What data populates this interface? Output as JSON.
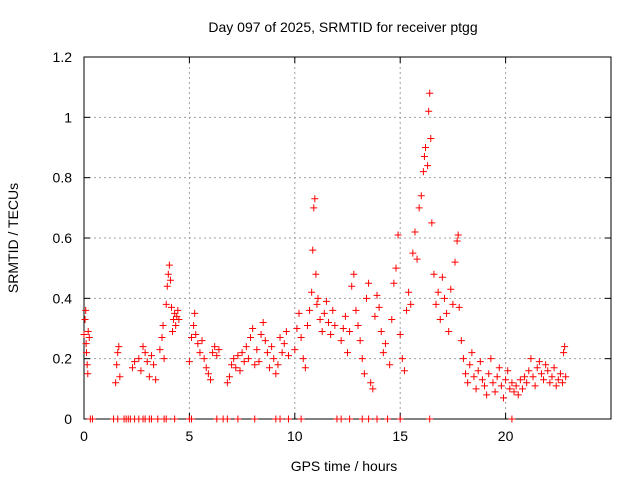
{
  "chart_data": {
    "type": "scatter",
    "title": "Day 097 of 2025, SRMTID for receiver ptgg",
    "xlabel": "GPS time / hours",
    "ylabel": "SRMTID / TECUs",
    "xlim": [
      0,
      25
    ],
    "ylim": [
      0,
      1.2
    ],
    "xticks": [
      0,
      5,
      10,
      15,
      20
    ],
    "xtick_labels": [
      "0",
      "5",
      "10",
      "15",
      "20"
    ],
    "yticks": [
      0,
      0.2,
      0.4,
      0.6,
      0.8,
      1.0,
      1.2
    ],
    "ytick_labels": [
      "0",
      "0.2",
      "0.4",
      "0.6",
      "0.8",
      "1",
      "1.2"
    ],
    "grid": true,
    "marker": "+",
    "series": [
      {
        "name": "SRMTID",
        "color": "#ff0000",
        "points": [
          [
            0.0,
            0.28
          ],
          [
            0.05,
            0.33
          ],
          [
            0.08,
            0.36
          ],
          [
            0.1,
            0.25
          ],
          [
            0.12,
            0.22
          ],
          [
            0.15,
            0.18
          ],
          [
            0.18,
            0.15
          ],
          [
            0.2,
            0.29
          ],
          [
            0.25,
            0.27
          ],
          [
            1.5,
            0.12
          ],
          [
            1.55,
            0.18
          ],
          [
            1.6,
            0.22
          ],
          [
            1.65,
            0.24
          ],
          [
            1.7,
            0.14
          ],
          [
            2.3,
            0.17
          ],
          [
            2.4,
            0.19
          ],
          [
            2.6,
            0.2
          ],
          [
            2.7,
            0.16
          ],
          [
            2.8,
            0.24
          ],
          [
            2.9,
            0.22
          ],
          [
            3.0,
            0.19
          ],
          [
            3.1,
            0.14
          ],
          [
            3.2,
            0.21
          ],
          [
            3.3,
            0.18
          ],
          [
            3.4,
            0.13
          ],
          [
            3.6,
            0.23
          ],
          [
            3.7,
            0.27
          ],
          [
            3.75,
            0.31
          ],
          [
            3.8,
            0.2
          ],
          [
            3.9,
            0.38
          ],
          [
            3.95,
            0.44
          ],
          [
            4.0,
            0.48
          ],
          [
            4.05,
            0.51
          ],
          [
            4.1,
            0.46
          ],
          [
            4.15,
            0.37
          ],
          [
            4.2,
            0.29
          ],
          [
            4.25,
            0.33
          ],
          [
            4.3,
            0.35
          ],
          [
            4.35,
            0.31
          ],
          [
            4.4,
            0.34
          ],
          [
            4.45,
            0.36
          ],
          [
            4.5,
            0.33
          ],
          [
            5.0,
            0.19
          ],
          [
            5.1,
            0.27
          ],
          [
            5.2,
            0.31
          ],
          [
            5.25,
            0.35
          ],
          [
            5.3,
            0.28
          ],
          [
            5.4,
            0.25
          ],
          [
            5.5,
            0.22
          ],
          [
            5.6,
            0.26
          ],
          [
            5.7,
            0.2
          ],
          [
            5.8,
            0.17
          ],
          [
            5.9,
            0.15
          ],
          [
            6.0,
            0.13
          ],
          [
            6.1,
            0.22
          ],
          [
            6.2,
            0.24
          ],
          [
            6.3,
            0.21
          ],
          [
            6.4,
            0.23
          ],
          [
            6.8,
            0.12
          ],
          [
            6.9,
            0.14
          ],
          [
            7.0,
            0.18
          ],
          [
            7.1,
            0.2
          ],
          [
            7.2,
            0.17
          ],
          [
            7.3,
            0.21
          ],
          [
            7.4,
            0.16
          ],
          [
            7.5,
            0.22
          ],
          [
            7.6,
            0.19
          ],
          [
            7.7,
            0.24
          ],
          [
            7.8,
            0.2
          ],
          [
            7.9,
            0.27
          ],
          [
            8.0,
            0.3
          ],
          [
            8.1,
            0.18
          ],
          [
            8.2,
            0.23
          ],
          [
            8.3,
            0.19
          ],
          [
            8.4,
            0.28
          ],
          [
            8.5,
            0.32
          ],
          [
            8.6,
            0.26
          ],
          [
            8.7,
            0.22
          ],
          [
            8.8,
            0.17
          ],
          [
            8.9,
            0.24
          ],
          [
            9.0,
            0.2
          ],
          [
            9.1,
            0.15
          ],
          [
            9.2,
            0.18
          ],
          [
            9.3,
            0.27
          ],
          [
            9.4,
            0.22
          ],
          [
            9.5,
            0.25
          ],
          [
            9.6,
            0.29
          ],
          [
            9.7,
            0.21
          ],
          [
            10.0,
            0.23
          ],
          [
            10.1,
            0.3
          ],
          [
            10.2,
            0.35
          ],
          [
            10.3,
            0.27
          ],
          [
            10.4,
            0.2
          ],
          [
            10.5,
            0.17
          ],
          [
            10.6,
            0.31
          ],
          [
            10.7,
            0.36
          ],
          [
            10.8,
            0.42
          ],
          [
            10.85,
            0.56
          ],
          [
            10.9,
            0.7
          ],
          [
            10.95,
            0.73
          ],
          [
            11.0,
            0.48
          ],
          [
            11.05,
            0.38
          ],
          [
            11.1,
            0.4
          ],
          [
            11.2,
            0.33
          ],
          [
            11.3,
            0.29
          ],
          [
            11.4,
            0.35
          ],
          [
            11.5,
            0.39
          ],
          [
            11.6,
            0.32
          ],
          [
            11.7,
            0.28
          ],
          [
            11.8,
            0.36
          ],
          [
            11.9,
            0.31
          ],
          [
            12.2,
            0.26
          ],
          [
            12.3,
            0.3
          ],
          [
            12.4,
            0.34
          ],
          [
            12.5,
            0.22
          ],
          [
            12.6,
            0.29
          ],
          [
            12.7,
            0.44
          ],
          [
            12.8,
            0.48
          ],
          [
            12.9,
            0.36
          ],
          [
            13.0,
            0.31
          ],
          [
            13.1,
            0.26
          ],
          [
            13.2,
            0.2
          ],
          [
            13.3,
            0.15
          ],
          [
            13.4,
            0.4
          ],
          [
            13.5,
            0.45
          ],
          [
            13.6,
            0.12
          ],
          [
            13.7,
            0.1
          ],
          [
            13.8,
            0.34
          ],
          [
            13.9,
            0.41
          ],
          [
            14.0,
            0.37
          ],
          [
            14.1,
            0.29
          ],
          [
            14.2,
            0.22
          ],
          [
            14.3,
            0.25
          ],
          [
            14.5,
            0.18
          ],
          [
            14.6,
            0.33
          ],
          [
            14.7,
            0.45
          ],
          [
            14.8,
            0.5
          ],
          [
            14.9,
            0.61
          ],
          [
            15.0,
            0.28
          ],
          [
            15.1,
            0.2
          ],
          [
            15.2,
            0.16
          ],
          [
            15.3,
            0.36
          ],
          [
            15.4,
            0.42
          ],
          [
            15.5,
            0.38
          ],
          [
            15.6,
            0.55
          ],
          [
            15.7,
            0.62
          ],
          [
            15.8,
            0.53
          ],
          [
            15.9,
            0.7
          ],
          [
            16.0,
            0.74
          ],
          [
            16.1,
            0.82
          ],
          [
            16.15,
            0.87
          ],
          [
            16.2,
            0.9
          ],
          [
            16.3,
            0.84
          ],
          [
            16.35,
            1.02
          ],
          [
            16.4,
            1.08
          ],
          [
            16.45,
            0.93
          ],
          [
            16.5,
            0.65
          ],
          [
            16.6,
            0.48
          ],
          [
            16.7,
            0.38
          ],
          [
            16.8,
            0.42
          ],
          [
            16.9,
            0.33
          ],
          [
            17.0,
            0.47
          ],
          [
            17.1,
            0.4
          ],
          [
            17.2,
            0.35
          ],
          [
            17.3,
            0.29
          ],
          [
            17.4,
            0.43
          ],
          [
            17.5,
            0.38
          ],
          [
            17.6,
            0.52
          ],
          [
            17.7,
            0.59
          ],
          [
            17.75,
            0.61
          ],
          [
            17.8,
            0.37
          ],
          [
            17.9,
            0.26
          ],
          [
            18.0,
            0.2
          ],
          [
            18.1,
            0.15
          ],
          [
            18.2,
            0.12
          ],
          [
            18.3,
            0.18
          ],
          [
            18.4,
            0.22
          ],
          [
            18.5,
            0.14
          ],
          [
            18.6,
            0.1
          ],
          [
            18.7,
            0.16
          ],
          [
            18.8,
            0.19
          ],
          [
            18.9,
            0.13
          ],
          [
            19.0,
            0.11
          ],
          [
            19.1,
            0.08
          ],
          [
            19.2,
            0.15
          ],
          [
            19.3,
            0.2
          ],
          [
            19.4,
            0.12
          ],
          [
            19.5,
            0.09
          ],
          [
            19.6,
            0.14
          ],
          [
            19.7,
            0.17
          ],
          [
            19.8,
            0.11
          ],
          [
            19.9,
            0.07
          ],
          [
            20.0,
            0.13
          ],
          [
            20.1,
            0.16
          ],
          [
            20.2,
            0.1
          ],
          [
            20.3,
            0.12
          ],
          [
            20.4,
            0.09
          ],
          [
            20.5,
            0.11
          ],
          [
            20.6,
            0.08
          ],
          [
            20.7,
            0.13
          ],
          [
            20.8,
            0.1
          ],
          [
            20.9,
            0.14
          ],
          [
            21.0,
            0.12
          ],
          [
            21.1,
            0.16
          ],
          [
            21.2,
            0.2
          ],
          [
            21.3,
            0.14
          ],
          [
            21.4,
            0.11
          ],
          [
            21.5,
            0.17
          ],
          [
            21.6,
            0.19
          ],
          [
            21.7,
            0.15
          ],
          [
            21.8,
            0.13
          ],
          [
            21.9,
            0.18
          ],
          [
            22.0,
            0.16
          ],
          [
            22.1,
            0.12
          ],
          [
            22.2,
            0.14
          ],
          [
            22.3,
            0.17
          ],
          [
            22.4,
            0.11
          ],
          [
            22.5,
            0.13
          ],
          [
            22.6,
            0.15
          ],
          [
            22.7,
            0.12
          ],
          [
            22.75,
            0.22
          ],
          [
            22.8,
            0.24
          ],
          [
            22.85,
            0.14
          ]
        ]
      }
    ],
    "zero_markers_x": [
      0.3,
      0.4,
      1.4,
      1.6,
      1.9,
      2.0,
      2.1,
      2.2,
      2.4,
      2.6,
      2.8,
      2.9,
      3.1,
      3.2,
      3.5,
      3.8,
      3.9,
      4.3,
      5.0,
      5.1,
      6.3,
      6.6,
      6.8,
      7.3,
      8.1,
      9.1,
      9.3,
      9.7,
      10.3,
      12.0,
      12.2,
      12.6,
      13.2,
      13.5,
      13.9,
      14.4,
      15.0,
      16.4,
      20.3
    ]
  }
}
